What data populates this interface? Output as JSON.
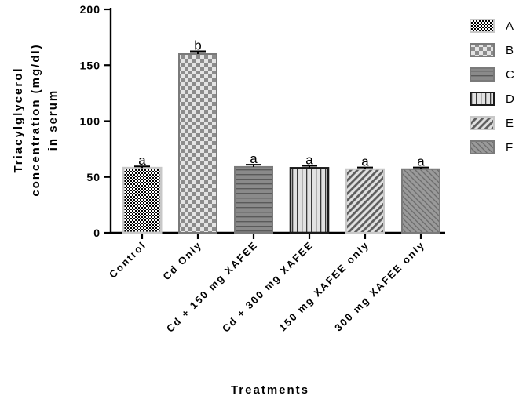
{
  "chart_data": {
    "type": "bar",
    "ylabel_lines": [
      "Triacylglycerol",
      "concentration (mg/dl)",
      "in serum"
    ],
    "xlabel": "Treatments",
    "ylim": [
      0,
      200
    ],
    "yticks": [
      "0",
      "50",
      "100",
      "150",
      "200"
    ],
    "categories": [
      "Control",
      "Cd Only",
      "Cd + 150 mg XAFEE",
      "Cd + 300 mg XAFEE",
      "150 mg XAFEE only",
      "300 mg XAFEE only"
    ],
    "values": [
      58,
      160,
      59,
      58,
      57,
      57
    ],
    "errors": [
      1.5,
      2.5,
      2,
      2,
      1.5,
      1.5
    ],
    "significance": [
      "a",
      "b",
      "a",
      "a",
      "a",
      "a"
    ],
    "legend": [
      "A",
      "B",
      "C",
      "D",
      "E",
      "F"
    ],
    "legend_position": "right",
    "fill_patterns": [
      "fine-checker",
      "checker",
      "horizontal-stripes",
      "vertical-stripes",
      "diagonal-stripes",
      "diagonal-stripes-light"
    ],
    "colors": {
      "axis": "#000000",
      "bar_border_dark": "#1a1a1a",
      "bar_border_gray": "#7a7a7a",
      "bar_border_light": "#c8c8c8"
    }
  }
}
